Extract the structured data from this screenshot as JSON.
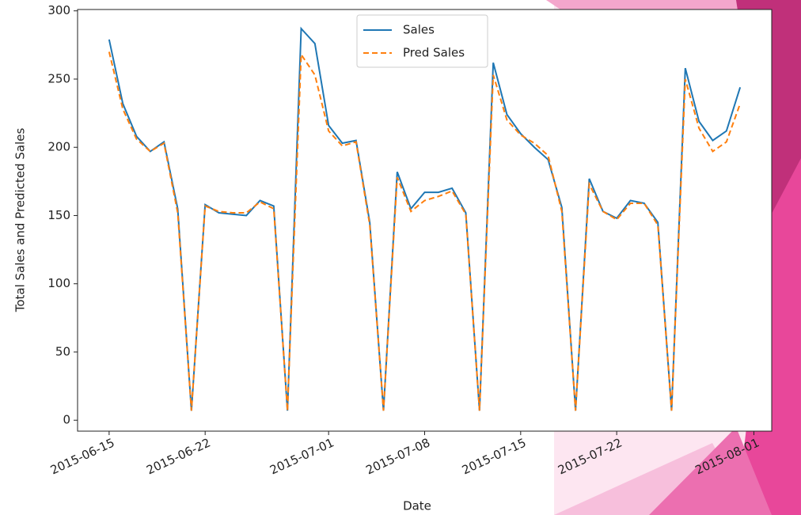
{
  "chart_data": {
    "type": "line",
    "x_label": "Date",
    "y_label": "Total Sales and Predicted Sales",
    "x": [
      "2015-06-15",
      "2015-06-16",
      "2015-06-17",
      "2015-06-18",
      "2015-06-19",
      "2015-06-20",
      "2015-06-21",
      "2015-06-22",
      "2015-06-23",
      "2015-06-24",
      "2015-06-25",
      "2015-06-26",
      "2015-06-27",
      "2015-06-28",
      "2015-06-29",
      "2015-06-30",
      "2015-07-01",
      "2015-07-02",
      "2015-07-03",
      "2015-07-04",
      "2015-07-05",
      "2015-07-06",
      "2015-07-07",
      "2015-07-08",
      "2015-07-09",
      "2015-07-10",
      "2015-07-11",
      "2015-07-12",
      "2015-07-13",
      "2015-07-14",
      "2015-07-15",
      "2015-07-16",
      "2015-07-17",
      "2015-07-18",
      "2015-07-19",
      "2015-07-20",
      "2015-07-21",
      "2015-07-22",
      "2015-07-23",
      "2015-07-24",
      "2015-07-25",
      "2015-07-26",
      "2015-07-27",
      "2015-07-28",
      "2015-07-29",
      "2015-07-30",
      "2015-07-31"
    ],
    "series": [
      {
        "name": "Sales",
        "color": "#1f77b4",
        "dash": false,
        "values": [
          279,
          232,
          208,
          197,
          204,
          155,
          7,
          158,
          152,
          151,
          150,
          161,
          157,
          7,
          287,
          276,
          216,
          203,
          205,
          145,
          7,
          182,
          155,
          167,
          167,
          170,
          152,
          7,
          262,
          224,
          210,
          200,
          191,
          156,
          7,
          177,
          153,
          148,
          161,
          159,
          145,
          7,
          258,
          219,
          205,
          212,
          244
        ]
      },
      {
        "name": "Pred Sales",
        "color": "#ff7f0e",
        "dash": true,
        "values": [
          270,
          228,
          206,
          197,
          203,
          152,
          7,
          157,
          153,
          152,
          152,
          160,
          155,
          7,
          268,
          253,
          212,
          201,
          204,
          143,
          7,
          178,
          153,
          161,
          164,
          168,
          151,
          7,
          253,
          220,
          209,
          203,
          194,
          153,
          7,
          173,
          153,
          147,
          159,
          159,
          143,
          7,
          250,
          214,
          197,
          204,
          232
        ]
      }
    ],
    "xlim": [
      "2015-06-12T16:48:00Z",
      "2015-08-02T07:12:00Z"
    ],
    "xticks": [
      "2015-06-15",
      "2015-06-22",
      "2015-07-01",
      "2015-07-08",
      "2015-07-15",
      "2015-07-22",
      "2015-08-01"
    ],
    "ylim": [
      -8,
      301
    ],
    "yticks": [
      0,
      50,
      100,
      150,
      200,
      250,
      300
    ],
    "legend": "upper center"
  }
}
